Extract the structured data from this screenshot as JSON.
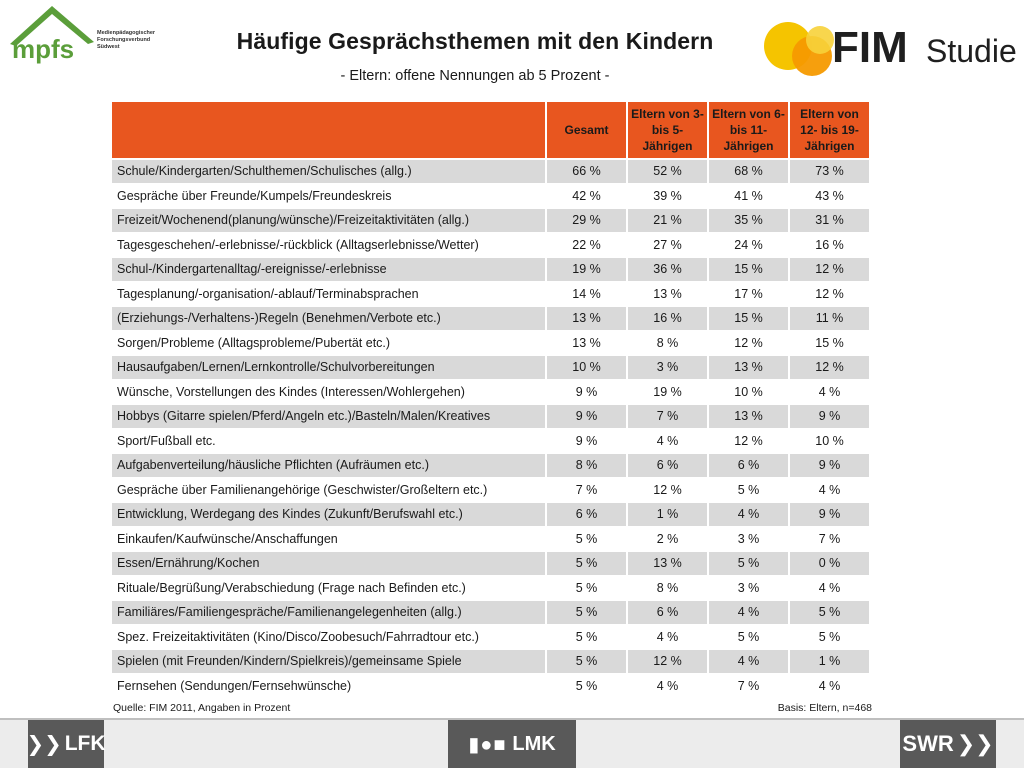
{
  "header": {
    "title": "Häufige Gesprächsthemen mit den Kindern",
    "subtitle": "- Eltern: offene Nennungen ab 5 Prozent -",
    "left_logo": {
      "name": "mpfs",
      "lines": [
        "Medienpädagogischer",
        "Forschungsverbund",
        "Südwest"
      ],
      "color": "#5b9e3a"
    },
    "right_logo": {
      "name": "FIM",
      "word": "Studie",
      "color": "#f5a800"
    }
  },
  "table": {
    "columns": [
      "",
      "Gesamt",
      "Eltern von 3- bis 5-Jährigen",
      "Eltern von 6- bis 11-Jährigen",
      "Eltern von 12- bis 19-Jährigen"
    ],
    "rows": [
      {
        "label": "Schule/Kindergarten/Schulthemen/Schulisches (allg.)",
        "values": [
          "66 %",
          "52 %",
          "68 %",
          "73 %"
        ]
      },
      {
        "label": "Gespräche über Freunde/Kumpels/Freundeskreis",
        "values": [
          "42 %",
          "39 %",
          "41 %",
          "43 %"
        ]
      },
      {
        "label": "Freizeit/Wochenend(planung/wünsche)/Freizeitaktivitäten  (allg.)",
        "values": [
          "29 %",
          "21 %",
          "35 %",
          "31 %"
        ]
      },
      {
        "label": "Tagesgeschehen/-erlebnisse/-rückblick (Alltagserlebnisse/Wetter)",
        "values": [
          "22 %",
          "27 %",
          "24 %",
          "16 %"
        ]
      },
      {
        "label": "Schul-/Kindergartenalltag/-ereignisse/-erlebnisse",
        "values": [
          "19 %",
          "36 %",
          "15 %",
          "12 %"
        ]
      },
      {
        "label": "Tagesplanung/-organisation/-ablauf/Terminabsprachen",
        "values": [
          "14 %",
          "13 %",
          "17 %",
          "12 %"
        ]
      },
      {
        "label": "(Erziehungs-/Verhaltens-)Regeln  (Benehmen/Verbote etc.)",
        "values": [
          "13 %",
          "16 %",
          "15 %",
          "11 %"
        ]
      },
      {
        "label": "Sorgen/Probleme (Alltagsprobleme/Pubertät etc.)",
        "values": [
          "13 %",
          "8 %",
          "12 %",
          "15 %"
        ]
      },
      {
        "label": "Hausaufgaben/Lernen/Lernkontrolle/Schulvorbereitungen",
        "values": [
          "10 %",
          "3 %",
          "13 %",
          "12 %"
        ]
      },
      {
        "label": "Wünsche, Vorstellungen des Kindes (Interessen/Wohlergehen)",
        "values": [
          "9 %",
          "19 %",
          "10 %",
          "4 %"
        ]
      },
      {
        "label": "Hobbys (Gitarre spielen/Pferd/Angeln etc.)/Basteln/Malen/Kreatives",
        "values": [
          "9 %",
          "7 %",
          "13 %",
          "9 %"
        ]
      },
      {
        "label": "Sport/Fußball etc.",
        "values": [
          "9 %",
          "4 %",
          "12 %",
          "10 %"
        ]
      },
      {
        "label": "Aufgabenverteilung/häusliche Pflichten (Aufräumen etc.)",
        "values": [
          "8 %",
          "6 %",
          "6 %",
          "9 %"
        ]
      },
      {
        "label": "Gespräche über Familienangehörige (Geschwister/Großeltern etc.)",
        "values": [
          "7 %",
          "12 %",
          "5 %",
          "4 %"
        ]
      },
      {
        "label": "Entwicklung, Werdegang des Kindes (Zukunft/Berufswahl etc.)",
        "values": [
          "6 %",
          "1 %",
          "4 %",
          "9 %"
        ]
      },
      {
        "label": "Einkaufen/Kaufwünsche/Anschaffungen",
        "values": [
          "5 %",
          "2 %",
          "3 %",
          "7 %"
        ]
      },
      {
        "label": "Essen/Ernährung/Kochen",
        "values": [
          "5 %",
          "13 %",
          "5 %",
          "0 %"
        ]
      },
      {
        "label": "Rituale/Begrüßung/Verabschiedung (Frage nach Befinden etc.)",
        "values": [
          "5 %",
          "8 %",
          "3 %",
          "4 %"
        ]
      },
      {
        "label": "Familiäres/Familiengespräche/Familienangelegenheiten  (allg.)",
        "values": [
          "5 %",
          "6 %",
          "4 %",
          "5 %"
        ]
      },
      {
        "label": "Spez. Freizeitaktivitäten (Kino/Disco/Zoobesuch/Fahrradtour etc.)",
        "values": [
          "5 %",
          "4 %",
          "5 %",
          "5 %"
        ]
      },
      {
        "label": "Spielen (mit Freunden/Kindern/Spielkreis)/gemeinsame  Spiele",
        "values": [
          "5 %",
          "12 %",
          "4 %",
          "1 %"
        ]
      },
      {
        "label": "Fernsehen (Sendungen/Fernsehwünsche)",
        "values": [
          "5 %",
          "4 %",
          "7 %",
          "4 %"
        ]
      }
    ]
  },
  "footer": {
    "source": "Quelle: FIM 2011,  Angaben in Prozent",
    "basis": "Basis: Eltern, n=468",
    "logos": [
      "LFK",
      "LMK",
      "SWR"
    ]
  },
  "colors": {
    "header_orange": "#e8561f",
    "row_grey": "#d9d9d9",
    "footer_grey": "#595959"
  }
}
